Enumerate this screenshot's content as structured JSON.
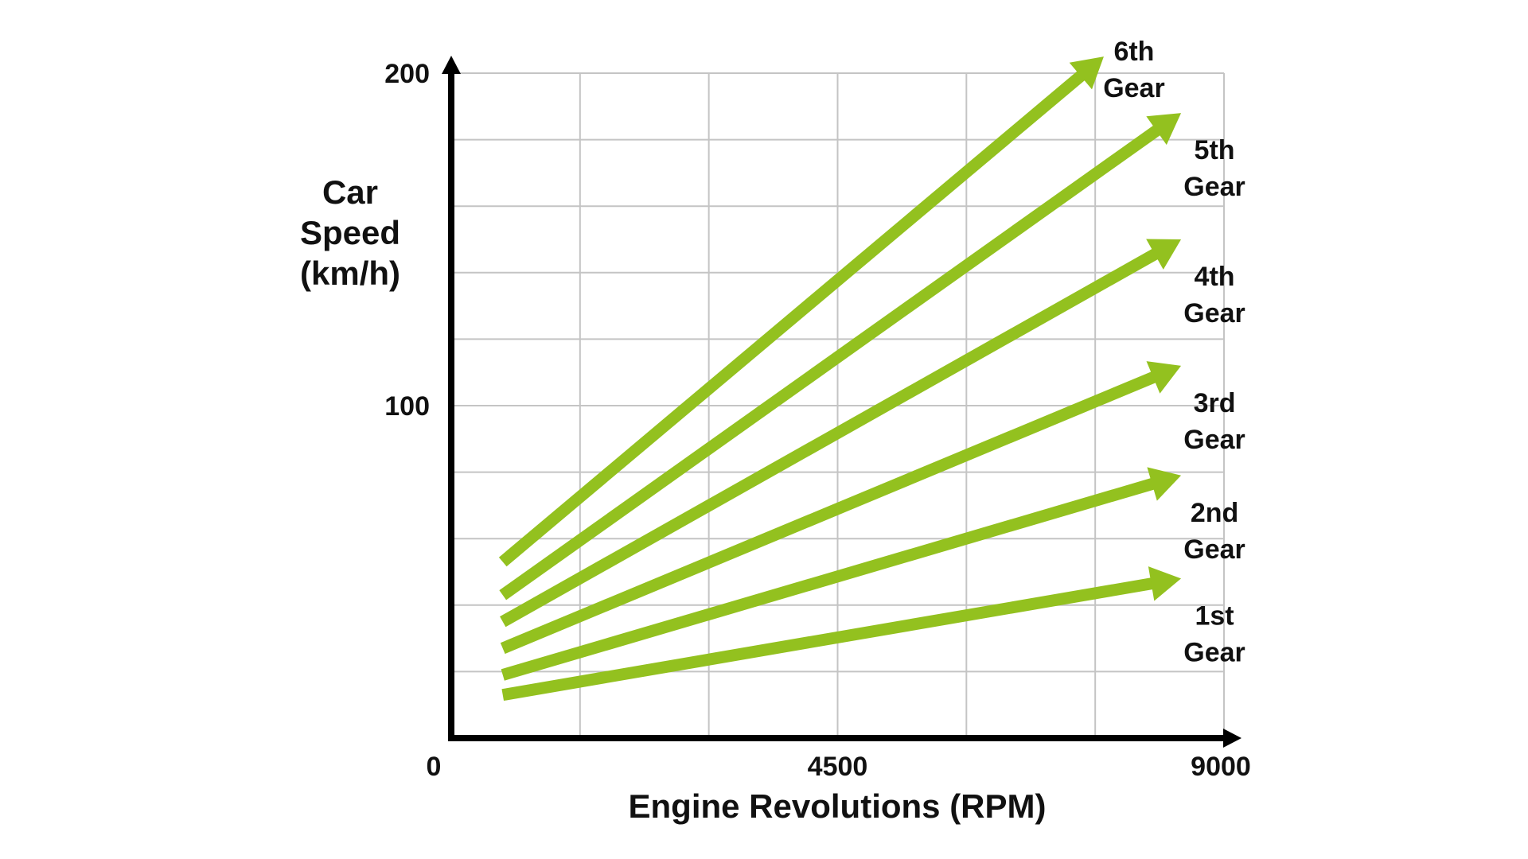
{
  "chart_data": {
    "type": "line",
    "title": "",
    "xlabel": "Engine Revolutions (RPM)",
    "ylabel_lines": [
      "Car",
      "Speed",
      "(km/h)"
    ],
    "xlim": [
      0,
      9000
    ],
    "ylim": [
      0,
      200
    ],
    "x_ticks": [
      "0",
      "4500",
      "9000"
    ],
    "y_ticks": [
      "100",
      "200"
    ],
    "grid": true,
    "color": "#93C11F",
    "series": [
      {
        "name": "1st Gear",
        "label_lines": [
          "1st",
          "Gear"
        ],
        "x": [
          600,
          8500
        ],
        "y": [
          13,
          48
        ]
      },
      {
        "name": "2nd Gear",
        "label_lines": [
          "2nd",
          "Gear"
        ],
        "x": [
          600,
          8500
        ],
        "y": [
          19,
          79
        ]
      },
      {
        "name": "3rd Gear",
        "label_lines": [
          "3rd",
          "Gear"
        ],
        "x": [
          600,
          8500
        ],
        "y": [
          27,
          112
        ]
      },
      {
        "name": "4th Gear",
        "label_lines": [
          "4th",
          "Gear"
        ],
        "x": [
          600,
          8500
        ],
        "y": [
          35,
          150
        ]
      },
      {
        "name": "5th Gear",
        "label_lines": [
          "5th",
          "Gear"
        ],
        "x": [
          600,
          8500
        ],
        "y": [
          43,
          188
        ]
      },
      {
        "name": "6th Gear",
        "label_lines": [
          "6th",
          "Gear"
        ],
        "x": [
          600,
          7600
        ],
        "y": [
          53,
          205
        ]
      }
    ]
  }
}
